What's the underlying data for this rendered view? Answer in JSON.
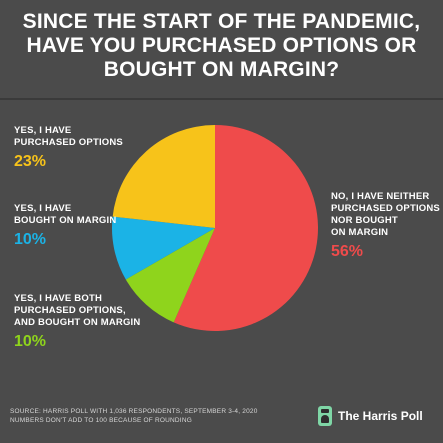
{
  "title": [
    "SINCE THE START OF THE PANDEMIC,",
    "HAVE YOU PURCHASED OPTIONS OR",
    "BOUGHT ON MARGIN?"
  ],
  "colors": {
    "background": "#4b4b4b",
    "neither": "#ef4b4b",
    "purchased_options": "#f7c31a",
    "bought_on_margin": "#1bb3e6",
    "both": "#8fd41c"
  },
  "chart_data": {
    "type": "pie",
    "slices": [
      {
        "key": "neither",
        "label": [
          "NO, I HAVE NEITHER",
          "PURCHASED OPTIONS",
          "NOR BOUGHT",
          "ON MARGIN"
        ],
        "value": 56,
        "value_label": "56%"
      },
      {
        "key": "both",
        "label": [
          "YES, I HAVE BOTH",
          "PURCHASED OPTIONS,",
          "AND BOUGHT ON MARGIN"
        ],
        "value": 10,
        "value_label": "10%"
      },
      {
        "key": "bought_on_margin",
        "label": [
          "YES, I HAVE",
          "BOUGHT ON MARGIN"
        ],
        "value": 10,
        "value_label": "10%"
      },
      {
        "key": "purchased_options",
        "label": [
          "YES, I HAVE",
          "PURCHASED OPTIONS"
        ],
        "value": 23,
        "value_label": "23%"
      }
    ]
  },
  "footer": {
    "source": [
      "SOURCE: HARRIS POLL WITH 1,036 RESPONDENTS, SEPTEMBER 3-4, 2020",
      "NUMBERS DON'T ADD TO 100 BECAUSE OF ROUNDING"
    ],
    "brand": "The Harris Poll",
    "brand_icon": "harris-poll-logo-icon"
  }
}
